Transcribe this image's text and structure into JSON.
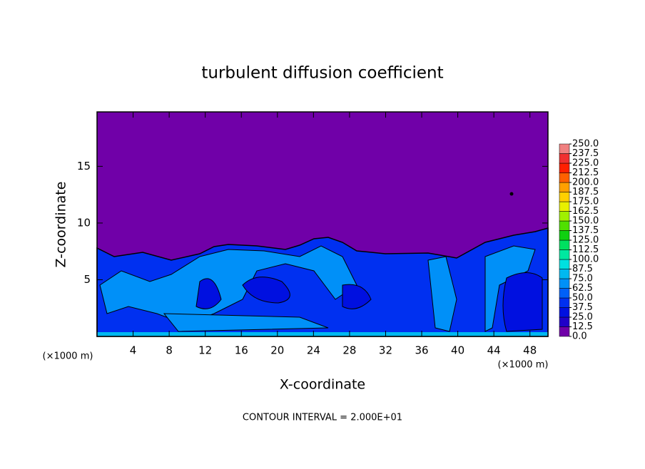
{
  "chart_data": {
    "type": "contour",
    "title": "turbulent diffusion coefficient",
    "x_label": "X-coordinate",
    "y_label": "Z-coordinate",
    "x_unit": "(×1000 m)",
    "annotation": "CONTOUR INTERVAL = 2.000E+01",
    "xlim": [
      0,
      50
    ],
    "xticks": [
      4,
      8,
      12,
      16,
      20,
      24,
      28,
      32,
      36,
      40,
      44,
      48
    ],
    "ylim": [
      0,
      19.8
    ],
    "yticks": [
      5,
      10,
      15
    ],
    "colorbar": {
      "ticks": [
        {
          "value": 0,
          "label": "0.0"
        },
        {
          "value": 12.5,
          "label": "12.5"
        },
        {
          "value": 25,
          "label": "25.0"
        },
        {
          "value": 37.5,
          "label": "37.5"
        },
        {
          "value": 50,
          "label": "50.0"
        },
        {
          "value": 62.5,
          "label": "62.5"
        },
        {
          "value": 75,
          "label": "75.0"
        },
        {
          "value": 87.5,
          "label": "87.5"
        },
        {
          "value": 100,
          "label": "100.0"
        },
        {
          "value": 112.5,
          "label": "112.5"
        },
        {
          "value": 125,
          "label": "125.0"
        },
        {
          "value": 137.5,
          "label": "137.5"
        },
        {
          "value": 150,
          "label": "150.0"
        },
        {
          "value": 162.5,
          "label": "162.5"
        },
        {
          "value": 175,
          "label": "175.0"
        },
        {
          "value": 187.5,
          "label": "187.5"
        },
        {
          "value": 200,
          "label": "200.0"
        },
        {
          "value": 212.5,
          "label": "212.5"
        },
        {
          "value": 225,
          "label": "225.0"
        },
        {
          "value": 237.5,
          "label": "237.5"
        },
        {
          "value": 250,
          "label": "250.0"
        }
      ],
      "colors": [
        "#7000a8",
        "#2000c8",
        "#0010e0",
        "#0030f0",
        "#0060f8",
        "#0090f8",
        "#00b8f0",
        "#00e0e0",
        "#00e8a0",
        "#00e060",
        "#10d010",
        "#50e000",
        "#a0f000",
        "#e8f000",
        "#ffd000",
        "#ffa000",
        "#ff6000",
        "#ff2000",
        "#f03030",
        "#f08080"
      ]
    }
  }
}
